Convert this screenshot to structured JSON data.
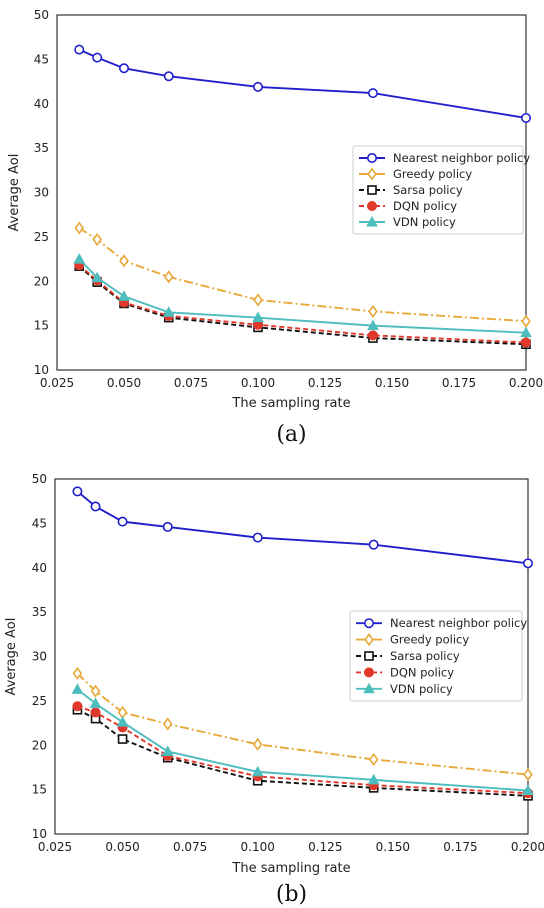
{
  "chart_data": [
    {
      "type": "line",
      "caption": "(a)",
      "xlabel": "The sampling rate",
      "ylabel": "Average AoI",
      "xlim": [
        0.025,
        0.2
      ],
      "ylim": [
        10,
        50
      ],
      "xticks": [
        "0.025",
        "0.050",
        "0.075",
        "0.100",
        "0.125",
        "0.150",
        "0.175",
        "0.200"
      ],
      "yticks": [
        "10",
        "15",
        "20",
        "25",
        "30",
        "35",
        "40",
        "45",
        "50"
      ],
      "legend_position": "center-right",
      "x": [
        0.0333,
        0.04,
        0.05,
        0.0667,
        0.1,
        0.1429,
        0.2
      ],
      "series": [
        {
          "name": "Nearest neighbor policy",
          "color": "#1f1fcc",
          "marker": "open-circle",
          "dash": "solid",
          "values": [
            46.1,
            45.2,
            44.0,
            43.1,
            41.9,
            41.2,
            38.4
          ]
        },
        {
          "name": "Greedy policy",
          "color": "#e8a838",
          "marker": "open-diamond",
          "dash": "dashdot",
          "values": [
            26.0,
            24.7,
            22.3,
            20.5,
            17.9,
            16.6,
            15.5
          ]
        },
        {
          "name": "Sarsa policy",
          "color": "#111111",
          "marker": "open-square",
          "dash": "dashed",
          "values": [
            21.7,
            19.9,
            17.5,
            15.9,
            14.8,
            13.6,
            12.9
          ]
        },
        {
          "name": "DQN policy",
          "color": "#e0392b",
          "marker": "filled-circle",
          "dash": "dashed",
          "values": [
            21.8,
            20.1,
            17.6,
            16.1,
            15.1,
            13.9,
            13.1
          ]
        },
        {
          "name": "VDN policy",
          "color": "#4dbdbd",
          "marker": "filled-triangle",
          "dash": "solid",
          "values": [
            22.5,
            20.4,
            18.3,
            16.5,
            15.9,
            15.0,
            14.2
          ]
        }
      ]
    },
    {
      "type": "line",
      "caption": "(b)",
      "xlabel": "The sampling rate",
      "ylabel": "Average AoI",
      "xlim": [
        0.025,
        0.2
      ],
      "ylim": [
        10,
        50
      ],
      "xticks": [
        "0.025",
        "0.050",
        "0.075",
        "0.100",
        "0.125",
        "0.150",
        "0.175",
        "0.200"
      ],
      "yticks": [
        "10",
        "15",
        "20",
        "25",
        "30",
        "35",
        "40",
        "45",
        "50"
      ],
      "legend_position": "center-right",
      "x": [
        0.0333,
        0.04,
        0.05,
        0.0667,
        0.1,
        0.1429,
        0.2
      ],
      "series": [
        {
          "name": "Nearest neighbor policy",
          "color": "#1f1fcc",
          "marker": "open-circle",
          "dash": "solid",
          "values": [
            48.6,
            46.9,
            45.2,
            44.6,
            43.4,
            42.6,
            40.5
          ]
        },
        {
          "name": "Greedy policy",
          "color": "#e8a838",
          "marker": "open-diamond",
          "dash": "dashdot",
          "values": [
            28.1,
            26.1,
            23.7,
            22.4,
            20.1,
            18.4,
            16.7
          ]
        },
        {
          "name": "Sarsa policy",
          "color": "#111111",
          "marker": "open-square",
          "dash": "dashed",
          "values": [
            24.0,
            23.0,
            20.7,
            18.6,
            16.0,
            15.2,
            14.3
          ]
        },
        {
          "name": "DQN policy",
          "color": "#e0392b",
          "marker": "filled-circle",
          "dash": "dashed",
          "values": [
            24.4,
            23.7,
            22.0,
            18.8,
            16.5,
            15.5,
            14.6
          ]
        },
        {
          "name": "VDN policy",
          "color": "#4dbdbd",
          "marker": "filled-triangle",
          "dash": "solid",
          "values": [
            26.3,
            24.7,
            22.6,
            19.3,
            17.0,
            16.1,
            14.9
          ]
        }
      ]
    }
  ]
}
